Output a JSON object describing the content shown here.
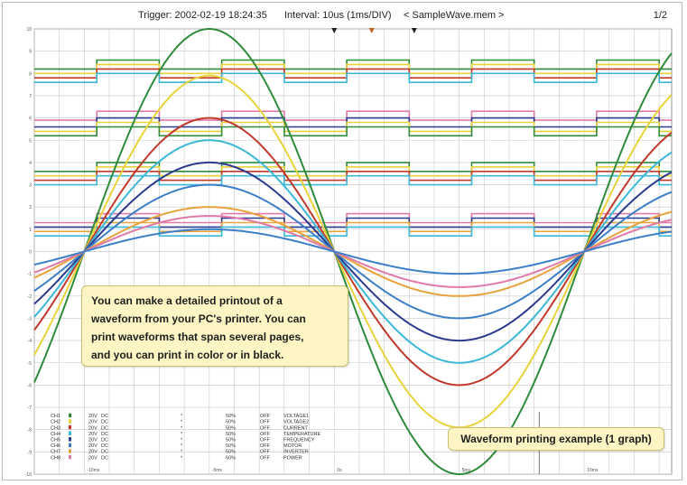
{
  "header": {
    "trigger": "Trigger: 2002-02-19 18:24:35",
    "interval": "Interval: 10us (1ms/DIV)",
    "filename": "< SampleWave.mem >",
    "page": "1/2"
  },
  "callout": {
    "lines": [
      "You can make a detailed printout of a",
      "waveform from your PC's printer. You can",
      "print waveforms that span several pages,",
      "and you can print in color or in black."
    ]
  },
  "caption": "Waveform printing example (1 graph)",
  "axis": {
    "y_ticks": [
      "10",
      "9",
      "8",
      "7",
      "6",
      "5",
      "4",
      "3",
      "2",
      "1",
      "0",
      "-1",
      "-2",
      "-3",
      "-4",
      "-5",
      "-6",
      "-7",
      "-8",
      "-9",
      "-10"
    ],
    "x_ticks": [
      "-10ms",
      "-5ms",
      "0s",
      "5ms",
      "10ms"
    ]
  },
  "colors": {
    "grid": "#c9c9c9",
    "green": "#2e8b3a",
    "yellow": "#e8d43a",
    "red": "#c0392b",
    "cyan": "#3bb8d8",
    "navy": "#2b3a8f",
    "orange": "#e8a33c",
    "pink": "#e07aa8",
    "blue": "#3c7fc8",
    "callout_bg": "#fdf6c4"
  },
  "chart_data": {
    "type": "line",
    "xlim": [
      -12,
      13.5
    ],
    "ylim": [
      -10,
      10
    ],
    "period_ms": 20,
    "series": [
      {
        "color": "#2e8b3a",
        "amplitude": 10
      },
      {
        "color": "#e8d43a",
        "amplitude": 7.9
      },
      {
        "color": "#c0392b",
        "amplitude": 6
      },
      {
        "color": "#3bb8d8",
        "amplitude": 5
      },
      {
        "color": "#2b3a8f",
        "amplitude": 4
      },
      {
        "color": "#3c7fc8",
        "amplitude": 3
      },
      {
        "color": "#e8a33c",
        "amplitude": 2
      },
      {
        "color": "#e07aa8",
        "amplitude": 1.6
      },
      {
        "color": "#3c7fc8",
        "amplitude": 1
      }
    ],
    "logic": [
      {
        "color": "#2e8b3a",
        "low": 8.2,
        "high": 8.6
      },
      {
        "color": "#e8d43a",
        "low": 8.0,
        "high": 8.4
      },
      {
        "color": "#c0392b",
        "low": 7.8,
        "high": 8.2
      },
      {
        "color": "#3bb8d8",
        "low": 7.6,
        "high": 8.0
      },
      {
        "color": "#e07aa8",
        "low": 5.9,
        "high": 6.3
      },
      {
        "color": "#2b3a8f",
        "low": 5.6,
        "high": 6.0
      },
      {
        "color": "#e8d43a",
        "low": 5.4,
        "high": 5.8
      },
      {
        "color": "#2e8b3a",
        "low": 5.2,
        "high": 5.6
      },
      {
        "color": "#2e8b3a",
        "low": 3.6,
        "high": 4.0
      },
      {
        "color": "#e8d43a",
        "low": 3.4,
        "high": 3.8
      },
      {
        "color": "#c0392b",
        "low": 3.2,
        "high": 3.6
      },
      {
        "color": "#3bb8d8",
        "low": 3.0,
        "high": 3.4
      },
      {
        "color": "#e07aa8",
        "low": 1.3,
        "high": 1.7
      },
      {
        "color": "#2b3a8f",
        "low": 1.1,
        "high": 1.5
      },
      {
        "color": "#e8a33c",
        "low": 0.9,
        "high": 1.3
      },
      {
        "color": "#3bb8d8",
        "low": 0.7,
        "high": 1.1
      }
    ]
  },
  "channels": [
    {
      "ch": "CH1",
      "range": "20V",
      "mode": "DC",
      "pos": "50%",
      "filter": "OFF",
      "comment": "VOLTAGE1",
      "color": "#2e8b3a"
    },
    {
      "ch": "CH2",
      "range": "20V",
      "mode": "DC",
      "pos": "50%",
      "filter": "OFF",
      "comment": "VOLTAGE2",
      "color": "#e8d43a"
    },
    {
      "ch": "CH3",
      "range": "20V",
      "mode": "DC",
      "pos": "50%",
      "filter": "OFF",
      "comment": "CURRENT",
      "color": "#c0392b"
    },
    {
      "ch": "CH4",
      "range": "20V",
      "mode": "DC",
      "pos": "50%",
      "filter": "OFF",
      "comment": "TEMPERATURE",
      "color": "#3bb8d8"
    },
    {
      "ch": "CH5",
      "range": "20V",
      "mode": "DC",
      "pos": "50%",
      "filter": "OFF",
      "comment": "FREQUENCY",
      "color": "#2b3a8f"
    },
    {
      "ch": "CH6",
      "range": "20V",
      "mode": "DC",
      "pos": "50%",
      "filter": "OFF",
      "comment": "MOTOR",
      "color": "#3c7fc8"
    },
    {
      "ch": "CH7",
      "range": "20V",
      "mode": "DC",
      "pos": "50%",
      "filter": "OFF",
      "comment": "INVERTER",
      "color": "#e8a33c"
    },
    {
      "ch": "CH8",
      "range": "20V",
      "mode": "DC",
      "pos": "50%",
      "filter": "OFF",
      "comment": "POWER",
      "color": "#e07aa8"
    }
  ]
}
